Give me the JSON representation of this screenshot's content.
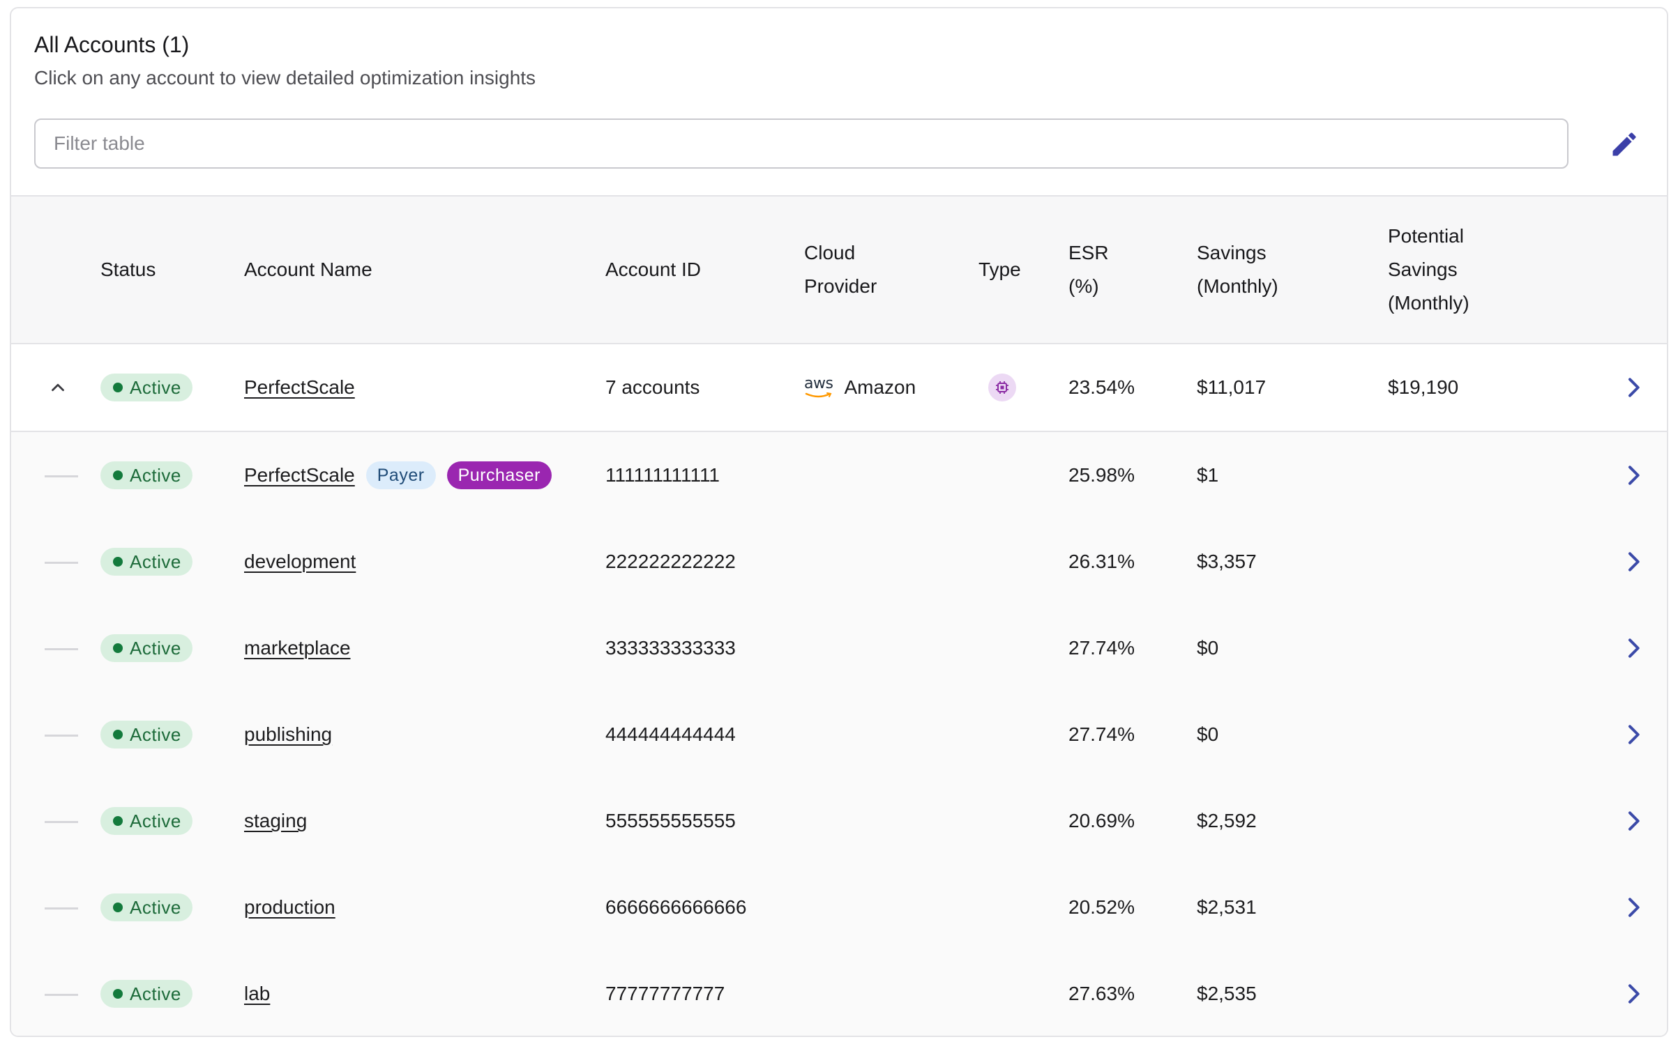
{
  "header": {
    "title": "All Accounts (1)",
    "subtitle": "Click on any account to view detailed optimization insights",
    "filter_placeholder": "Filter table",
    "edit_icon": "pencil-icon"
  },
  "columns": {
    "status": "Status",
    "account_name": "Account Name",
    "account_id": "Account ID",
    "cloud_provider_1": "Cloud",
    "cloud_provider_2": "Provider",
    "type": "Type",
    "esr_1": "ESR",
    "esr_2": "(%)",
    "savings_1": "Savings",
    "savings_2": "(Monthly)",
    "potential_1": "Potential",
    "potential_2": "Savings",
    "potential_3": "(Monthly)"
  },
  "parent": {
    "status": "Active",
    "name": "PerfectScale",
    "account_id": "7 accounts",
    "provider_logo": "aws",
    "provider": "Amazon",
    "type_icon": "chip-icon",
    "esr": "23.54%",
    "savings": "$11,017",
    "potential_savings": "$19,190"
  },
  "children": [
    {
      "status": "Active",
      "name": "PerfectScale",
      "tags": [
        "Payer",
        "Purchaser"
      ],
      "account_id": "111111111111",
      "esr": "25.98%",
      "savings": "$1"
    },
    {
      "status": "Active",
      "name": "development",
      "tags": [],
      "account_id": "222222222222",
      "esr": "26.31%",
      "savings": "$3,357"
    },
    {
      "status": "Active",
      "name": "marketplace",
      "tags": [],
      "account_id": "333333333333",
      "esr": "27.74%",
      "savings": "$0"
    },
    {
      "status": "Active",
      "name": "publishing",
      "tags": [],
      "account_id": "444444444444",
      "esr": "27.74%",
      "savings": "$0"
    },
    {
      "status": "Active",
      "name": "staging",
      "tags": [],
      "account_id": "555555555555",
      "esr": "20.69%",
      "savings": "$2,592"
    },
    {
      "status": "Active",
      "name": "production",
      "tags": [],
      "account_id": "6666666666666",
      "esr": "20.52%",
      "savings": "$2,531"
    },
    {
      "status": "Active",
      "name": "lab",
      "tags": [],
      "account_id": "77777777777",
      "esr": "27.63%",
      "savings": "$2,535"
    }
  ],
  "colors": {
    "active_badge_bg": "#d8efdf",
    "active_badge_text": "#1d6b3a",
    "payer_tag_bg": "#dcecfb",
    "purchaser_tag_bg": "#9a26b0",
    "chevron": "#3b4aa8"
  }
}
